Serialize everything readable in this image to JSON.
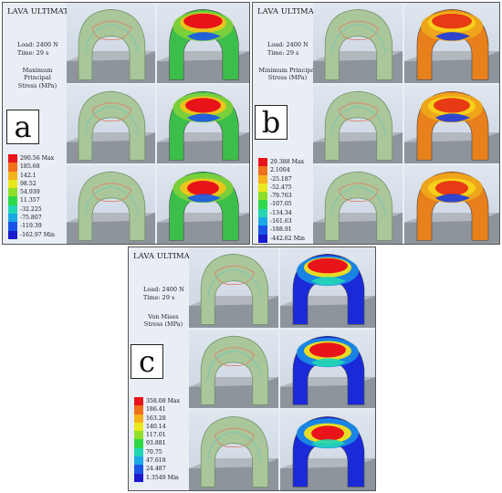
{
  "panels": [
    {
      "letter": "a",
      "title": "LAVA ULTIMATE",
      "load": "Load: 2400 N",
      "time": "Time: 29 s",
      "stress_line1": "Maximum Principal",
      "stress_line2": "Stress (MPa)",
      "legend": [
        {
          "label": "290.56 Max",
          "color": "#e8141a"
        },
        {
          "label": "185.68",
          "color": "#f0701c"
        },
        {
          "label": "142.1",
          "color": "#f5b21a"
        },
        {
          "label": "98.52",
          "color": "#e9e81d"
        },
        {
          "label": "54.939",
          "color": "#8fdf28"
        },
        {
          "label": "11.357",
          "color": "#2fd848"
        },
        {
          "label": "-32.225",
          "color": "#22d6b4"
        },
        {
          "label": "-75.807",
          "color": "#1aa8e6"
        },
        {
          "label": "-119.39",
          "color": "#1a55e8"
        },
        {
          "label": "-162.97 Min",
          "color": "#1a1acc"
        }
      ],
      "contour_style": "green-red"
    },
    {
      "letter": "b",
      "title": "LAVA ULTIMATE",
      "load": "Load: 2400 N",
      "time": "Time: 29 s",
      "stress_line1": "Minimum Principal",
      "stress_line2": "Stress (MPa)",
      "legend": [
        {
          "label": "29.388 Max",
          "color": "#e8141a"
        },
        {
          "label": "2.1004",
          "color": "#f0701c"
        },
        {
          "label": "-25.187",
          "color": "#f5b21a"
        },
        {
          "label": "-52.475",
          "color": "#e9e81d"
        },
        {
          "label": "-79.763",
          "color": "#8fdf28"
        },
        {
          "label": "-107.05",
          "color": "#2fd848"
        },
        {
          "label": "-134.34",
          "color": "#22d6b4"
        },
        {
          "label": "-161.63",
          "color": "#1aa8e6"
        },
        {
          "label": "-188.91",
          "color": "#1a55e8"
        },
        {
          "label": "-442.62 Min",
          "color": "#1a1acc"
        }
      ],
      "contour_style": "orange-blue"
    },
    {
      "letter": "c",
      "title": "LAVA ULTIMATE",
      "load": "Load: 2400 N",
      "time": "Time: 29 s",
      "stress_line1": "Von Mises",
      "stress_line2": "Stress (MPa)",
      "legend": [
        {
          "label": "358.08 Max",
          "color": "#e8141a"
        },
        {
          "label": "186.41",
          "color": "#f0701c"
        },
        {
          "label": "163.28",
          "color": "#f5b21a"
        },
        {
          "label": "140.14",
          "color": "#e9e81d"
        },
        {
          "label": "117.01",
          "color": "#8fdf28"
        },
        {
          "label": "93.881",
          "color": "#2fd848"
        },
        {
          "label": "70.75",
          "color": "#22d6b4"
        },
        {
          "label": "47.618",
          "color": "#1aa8e6"
        },
        {
          "label": "24.487",
          "color": "#1a55e8"
        },
        {
          "label": "1.3549 Min",
          "color": "#1a1acc"
        }
      ],
      "contour_style": "blue-red"
    }
  ]
}
